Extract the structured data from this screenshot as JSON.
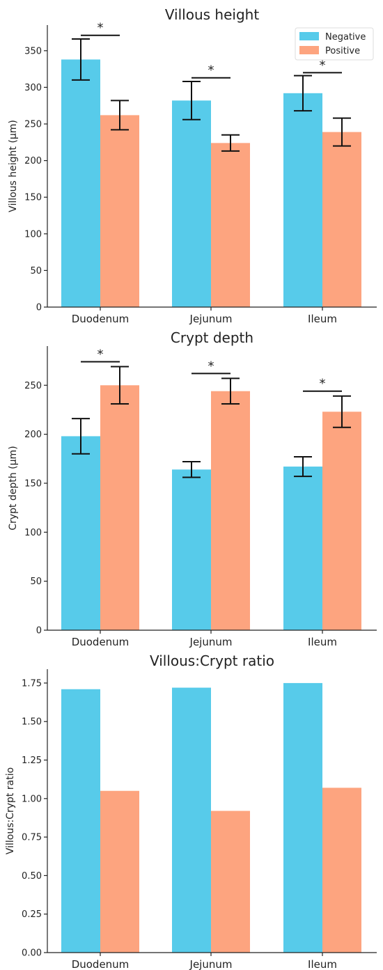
{
  "colors": {
    "negative": "#57cbea",
    "positive": "#fda47f",
    "axis": "#222222",
    "error_bar": "#111111"
  },
  "legend": {
    "location": "top-right",
    "entries": [
      "Negative",
      "Positive"
    ]
  },
  "chart_data": [
    {
      "type": "bar",
      "title": "Villous height",
      "xlabel": "",
      "ylabel": "Villous height (μm)",
      "categories": [
        "Duodenum",
        "Jejunum",
        "Ileum"
      ],
      "ylim": [
        0,
        385
      ],
      "yticks": [
        0,
        50,
        100,
        150,
        200,
        250,
        300,
        350
      ],
      "ytick_labels": [
        "0",
        "50",
        "100",
        "150",
        "200",
        "250",
        "300",
        "350"
      ],
      "grid": false,
      "legend": true,
      "series": [
        {
          "name": "Negative",
          "values": [
            338,
            282,
            292
          ],
          "err": [
            28,
            26,
            24
          ]
        },
        {
          "name": "Positive",
          "values": [
            262,
            224,
            239
          ],
          "err": [
            20,
            11,
            19
          ]
        }
      ],
      "annotations": [
        {
          "text": "*",
          "category": "Duodenum",
          "y": 371
        },
        {
          "text": "*",
          "category": "Jejunum",
          "y": 313
        },
        {
          "text": "*",
          "category": "Ileum",
          "y": 320
        }
      ]
    },
    {
      "type": "bar",
      "title": "Crypt depth",
      "xlabel": "",
      "ylabel": "Crypt depth (μm)",
      "categories": [
        "Duodenum",
        "Jejunum",
        "Ileum"
      ],
      "ylim": [
        0,
        290
      ],
      "yticks": [
        0,
        50,
        100,
        150,
        200,
        250
      ],
      "ytick_labels": [
        "0",
        "50",
        "100",
        "150",
        "200",
        "250"
      ],
      "grid": false,
      "legend": false,
      "series": [
        {
          "name": "Negative",
          "values": [
            198,
            164,
            167
          ],
          "err": [
            18,
            8,
            10
          ]
        },
        {
          "name": "Positive",
          "values": [
            250,
            244,
            223
          ],
          "err": [
            19,
            13,
            16
          ]
        }
      ],
      "annotations": [
        {
          "text": "*",
          "category": "Duodenum",
          "y": 274
        },
        {
          "text": "*",
          "category": "Jejunum",
          "y": 262
        },
        {
          "text": "*",
          "category": "Ileum",
          "y": 244
        }
      ]
    },
    {
      "type": "bar",
      "title": "Villous:Crypt ratio",
      "xlabel": "",
      "ylabel": "Villous:Crypt ratio",
      "categories": [
        "Duodenum",
        "Jejunum",
        "Ileum"
      ],
      "ylim": [
        0,
        1.84
      ],
      "yticks": [
        0,
        0.25,
        0.5,
        0.75,
        1.0,
        1.25,
        1.5,
        1.75
      ],
      "ytick_labels": [
        "0.00",
        "0.25",
        "0.50",
        "0.75",
        "1.00",
        "1.25",
        "1.50",
        "1.75"
      ],
      "grid": false,
      "legend": false,
      "series": [
        {
          "name": "Negative",
          "values": [
            1.71,
            1.72,
            1.75
          ]
        },
        {
          "name": "Positive",
          "values": [
            1.05,
            0.92,
            1.07
          ]
        }
      ],
      "annotations": []
    }
  ]
}
